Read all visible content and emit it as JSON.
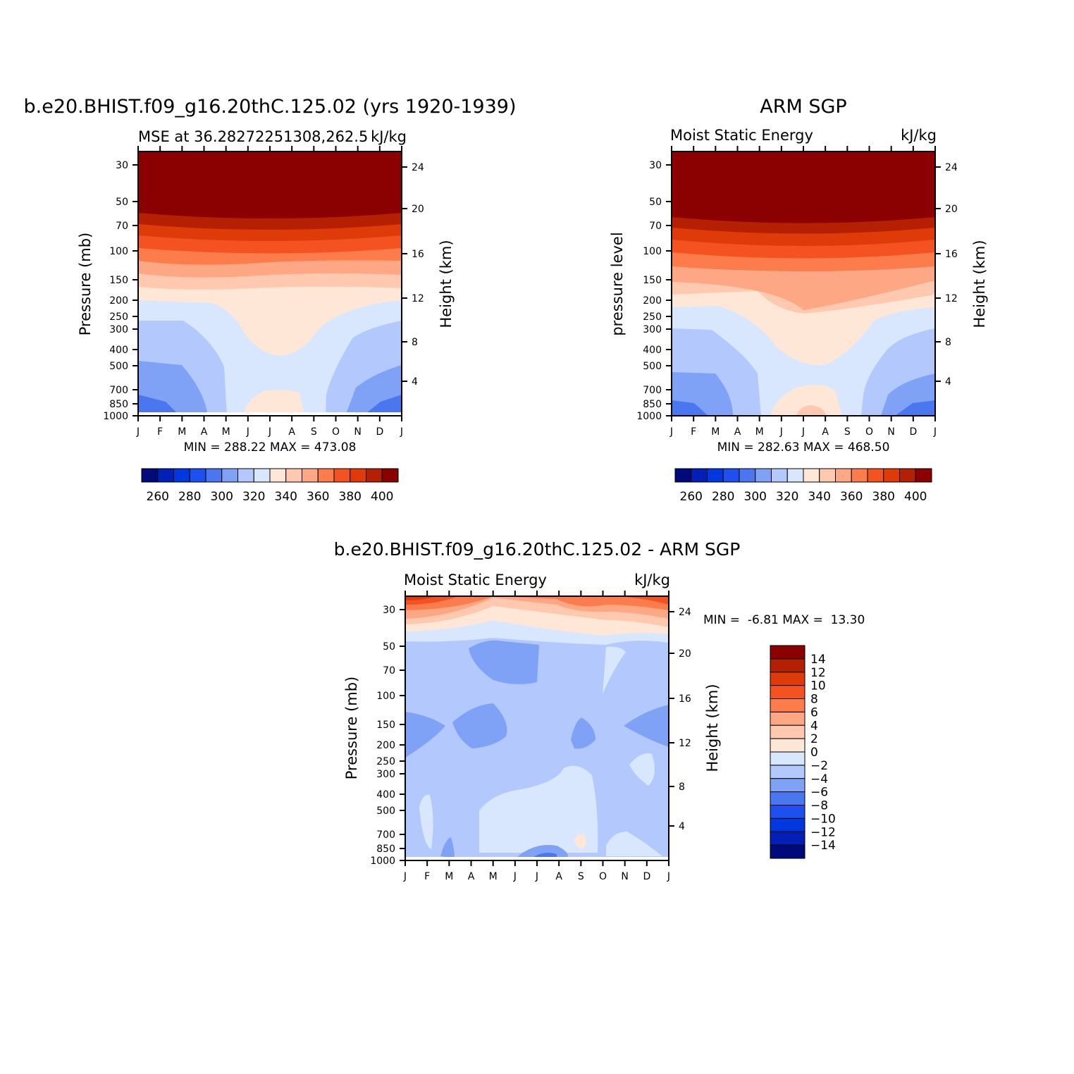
{
  "chart_data": [
    {
      "type": "heatmap",
      "panel": "model",
      "title": "b.e20.BHIST.f09_g16.20thC.125.02 (yrs 1920-1939)",
      "subtitle_left": "MSE at 36.28272251308,262.5",
      "subtitle_right": "kJ/kg",
      "ylabel": "Pressure (mb)",
      "ylabel_right": "Height (km)",
      "x_tick_labels": [
        "J",
        "F",
        "M",
        "A",
        "M",
        "J",
        "J",
        "A",
        "S",
        "O",
        "N",
        "D",
        "J"
      ],
      "y_tick_labels": [
        "30",
        "50",
        "70",
        "100",
        "150",
        "200",
        "250",
        "300",
        "400",
        "500",
        "700",
        "850",
        "1000"
      ],
      "y_right_tick_labels": [
        "24",
        "20",
        "16",
        "12",
        "8",
        "4"
      ],
      "stats": "MIN = 288.22 MAX = 473.08",
      "colorbar_labels": [
        "260",
        "280",
        "300",
        "320",
        "340",
        "360",
        "380",
        "400"
      ],
      "contour_levels": [
        250,
        260,
        270,
        280,
        290,
        300,
        310,
        320,
        330,
        340,
        350,
        360,
        370,
        380,
        390,
        400,
        410
      ],
      "min": 288.22,
      "max": 473.08
    },
    {
      "type": "heatmap",
      "panel": "obs",
      "title": "ARM SGP",
      "subtitle_left": "Moist Static Energy",
      "subtitle_right": "kJ/kg",
      "ylabel": "pressure level",
      "ylabel_right": "Height (km)",
      "x_tick_labels": [
        "J",
        "F",
        "M",
        "A",
        "M",
        "J",
        "J",
        "A",
        "S",
        "O",
        "N",
        "D",
        "J"
      ],
      "y_tick_labels": [
        "30",
        "50",
        "70",
        "100",
        "150",
        "200",
        "250",
        "300",
        "400",
        "500",
        "700",
        "850",
        "1000"
      ],
      "y_right_tick_labels": [
        "24",
        "20",
        "16",
        "12",
        "8",
        "4"
      ],
      "stats": "MIN = 282.63 MAX = 468.50",
      "colorbar_labels": [
        "260",
        "280",
        "300",
        "320",
        "340",
        "360",
        "380",
        "400"
      ],
      "contour_levels": [
        250,
        260,
        270,
        280,
        290,
        300,
        310,
        320,
        330,
        340,
        350,
        360,
        370,
        380,
        390,
        400,
        410
      ],
      "min": 282.63,
      "max": 468.5
    },
    {
      "type": "heatmap",
      "panel": "diff",
      "title": "b.e20.BHIST.f09_g16.20thC.125.02 - ARM SGP",
      "subtitle_left": "Moist Static Energy",
      "subtitle_right": "kJ/kg",
      "ylabel": "Pressure (mb)",
      "ylabel_right": "Height (km)",
      "x_tick_labels": [
        "J",
        "F",
        "M",
        "A",
        "M",
        "J",
        "J",
        "A",
        "S",
        "O",
        "N",
        "D",
        "J"
      ],
      "y_tick_labels": [
        "30",
        "50",
        "70",
        "100",
        "150",
        "200",
        "250",
        "300",
        "400",
        "500",
        "700",
        "850",
        "1000"
      ],
      "y_right_tick_labels": [
        "24",
        "20",
        "16",
        "12",
        "8",
        "4"
      ],
      "stats": "MIN =  -6.81 MAX =  13.30",
      "colorbar_labels": [
        "14",
        "12",
        "10",
        "8",
        "6",
        "4",
        "2",
        "0",
        "−2",
        "−4",
        "−6",
        "−8",
        "−10",
        "−12",
        "−14"
      ],
      "contour_levels": [
        -14,
        -12,
        -10,
        -8,
        -6,
        -4,
        -2,
        0,
        2,
        4,
        6,
        8,
        10,
        12,
        14
      ],
      "min": -6.81,
      "max": 13.3
    }
  ],
  "colors": {
    "scale": [
      "#000a7a",
      "#0020b8",
      "#0038e0",
      "#1e50ef",
      "#4a76f0",
      "#7fa2f7",
      "#b3c9fd",
      "#d8e7fe",
      "#ffe7d7",
      "#ffc9b0",
      "#fda785",
      "#fc7c4c",
      "#f45220",
      "#de3b08",
      "#b52003",
      "#8b0000"
    ],
    "diff_scale": [
      "#000a7a",
      "#0020b8",
      "#0038e0",
      "#1e50ef",
      "#4a76f0",
      "#7fa2f7",
      "#b3c9fd",
      "#d8e7fe",
      "#ffe7d7",
      "#ffc9b0",
      "#fda785",
      "#fc7c4c",
      "#f45220",
      "#de3b08",
      "#b52003",
      "#8b0000"
    ]
  }
}
